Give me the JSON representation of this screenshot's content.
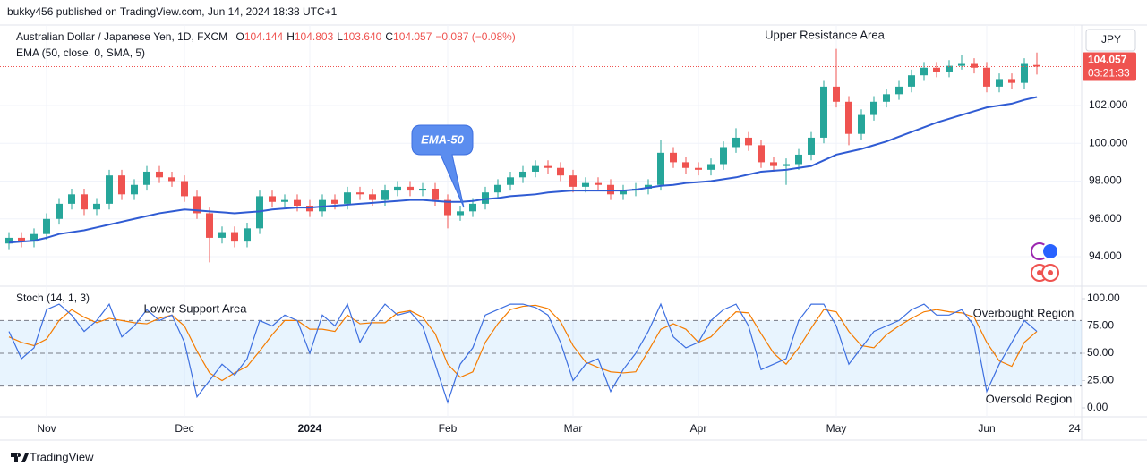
{
  "header": {
    "publisher": "bukky456 published on TradingView.com, Jun 14, 2024 18:38 UTC+1",
    "symbol": "Australian Dollar / Japanese Yen, 1D, FXCM",
    "quote": [
      {
        "key": "O",
        "value": "104.144"
      },
      {
        "key": "H",
        "value": "104.803"
      },
      {
        "key": "L",
        "value": "103.640"
      },
      {
        "key": "C",
        "value": "104.057"
      }
    ],
    "change": "−0.087 (−0.08%)",
    "currency": "JPY"
  },
  "footer": {
    "brand": "TradingView"
  },
  "chart_data": [
    {
      "type": "candlestick",
      "up_color": "#26a69a",
      "down_color": "#ef5350",
      "open": [
        94.7,
        95.0,
        94.8,
        95.2,
        96.0,
        96.8,
        97.3,
        96.5,
        96.8,
        98.3,
        97.3,
        97.8,
        98.5,
        98.2,
        98.0,
        97.2,
        96.3,
        95.0,
        95.3,
        94.8,
        95.5,
        97.2,
        96.9,
        97.0,
        96.7,
        96.4,
        97.0,
        96.8,
        97.4,
        97.3,
        97.0,
        97.5,
        97.7,
        97.5,
        97.6,
        97.0,
        96.2,
        96.4,
        96.8,
        97.4,
        97.8,
        98.2,
        98.5,
        98.8,
        98.7,
        98.3,
        97.7,
        97.9,
        97.8,
        97.3,
        97.5,
        97.6,
        97.8,
        99.5,
        99.0,
        98.7,
        98.6,
        98.9,
        99.8,
        100.3,
        99.9,
        99.0,
        98.8,
        98.9,
        99.4,
        100.3,
        103.0,
        102.2,
        100.5,
        101.5,
        102.2,
        102.6,
        103.0,
        103.6,
        104.0,
        103.8,
        104.1,
        104.2,
        104.0,
        103.0,
        103.4,
        103.2,
        104.144
      ],
      "high": [
        95.3,
        95.3,
        95.5,
        96.3,
        97.1,
        97.6,
        97.6,
        97.1,
        98.6,
        98.6,
        98.1,
        98.8,
        98.8,
        98.5,
        98.3,
        97.5,
        96.6,
        95.6,
        95.6,
        95.8,
        97.5,
        97.5,
        97.3,
        97.3,
        97.0,
        97.3,
        97.3,
        97.7,
        97.7,
        97.6,
        97.8,
        98.0,
        98.0,
        97.9,
        97.9,
        97.3,
        96.7,
        97.1,
        97.7,
        98.1,
        98.5,
        98.8,
        99.1,
        99.1,
        99.0,
        98.6,
        98.2,
        98.2,
        98.1,
        97.8,
        97.9,
        98.1,
        100.2,
        99.8,
        99.3,
        99.0,
        99.2,
        100.1,
        100.8,
        100.6,
        100.2,
        99.3,
        99.2,
        99.7,
        100.6,
        103.3,
        105.0,
        102.5,
        101.8,
        102.5,
        102.9,
        103.3,
        103.9,
        104.3,
        104.3,
        104.4,
        104.7,
        104.5,
        104.3,
        103.7,
        103.7,
        104.5,
        104.803
      ],
      "low": [
        94.4,
        94.5,
        94.5,
        94.9,
        95.7,
        96.5,
        96.2,
        96.2,
        96.5,
        97.0,
        97.0,
        97.5,
        97.9,
        97.7,
        96.9,
        96.0,
        93.7,
        94.7,
        94.5,
        94.5,
        95.2,
        96.6,
        96.6,
        96.4,
        96.1,
        96.1,
        96.5,
        96.5,
        97.0,
        96.7,
        96.7,
        97.2,
        97.2,
        97.2,
        96.7,
        95.5,
        95.9,
        96.1,
        96.5,
        97.1,
        97.5,
        97.9,
        98.2,
        98.4,
        98.0,
        97.4,
        97.4,
        97.5,
        97.0,
        97.0,
        97.2,
        97.3,
        97.5,
        98.7,
        98.4,
        98.3,
        98.3,
        98.6,
        99.5,
        99.6,
        98.7,
        98.5,
        97.8,
        98.6,
        99.1,
        100.0,
        101.9,
        99.9,
        100.2,
        101.2,
        101.9,
        102.3,
        102.7,
        103.3,
        103.5,
        103.5,
        103.9,
        103.7,
        102.7,
        102.7,
        102.9,
        102.9,
        103.64
      ],
      "close": [
        95.0,
        94.8,
        95.2,
        96.0,
        96.8,
        97.3,
        96.5,
        96.8,
        98.3,
        97.3,
        97.8,
        98.5,
        98.2,
        98.0,
        97.2,
        96.3,
        95.0,
        95.3,
        94.8,
        95.5,
        97.2,
        96.9,
        97.0,
        96.7,
        96.4,
        97.0,
        96.8,
        97.4,
        97.3,
        97.0,
        97.5,
        97.7,
        97.5,
        97.6,
        97.0,
        96.2,
        96.4,
        96.8,
        97.4,
        97.8,
        98.2,
        98.5,
        98.8,
        98.7,
        98.3,
        97.7,
        97.9,
        97.8,
        97.3,
        97.5,
        97.6,
        97.8,
        99.5,
        99.0,
        98.7,
        98.6,
        98.9,
        99.8,
        100.3,
        99.9,
        99.0,
        98.8,
        98.9,
        99.4,
        100.3,
        103.0,
        102.2,
        100.5,
        101.5,
        102.2,
        102.6,
        103.0,
        103.6,
        104.0,
        103.8,
        104.1,
        104.2,
        104.0,
        103.0,
        103.4,
        103.2,
        104.2,
        104.057
      ],
      "ema": {
        "name": "EMA (50, close, 0, SMA, 5)",
        "color": "#2f5bd3",
        "values": [
          94.75,
          94.8,
          94.85,
          95.0,
          95.2,
          95.3,
          95.4,
          95.55,
          95.7,
          95.85,
          96.0,
          96.15,
          96.3,
          96.4,
          96.5,
          96.45,
          96.4,
          96.35,
          96.3,
          96.35,
          96.4,
          96.5,
          96.55,
          96.6,
          96.6,
          96.65,
          96.7,
          96.75,
          96.8,
          96.85,
          96.9,
          96.95,
          97.0,
          97.0,
          96.95,
          96.9,
          96.9,
          96.95,
          97.05,
          97.1,
          97.2,
          97.25,
          97.3,
          97.4,
          97.45,
          97.5,
          97.5,
          97.5,
          97.5,
          97.5,
          97.55,
          97.65,
          97.75,
          97.8,
          97.9,
          97.95,
          98.0,
          98.1,
          98.2,
          98.35,
          98.5,
          98.55,
          98.6,
          98.7,
          98.8,
          99.1,
          99.4,
          99.55,
          99.7,
          99.9,
          100.1,
          100.35,
          100.6,
          100.85,
          101.1,
          101.3,
          101.5,
          101.7,
          101.9,
          102.0,
          102.1,
          102.3,
          102.45
        ]
      },
      "ylim": [
        92.44,
        106.26
      ],
      "yticks": [
        {
          "value": 94,
          "label": "94.000"
        },
        {
          "value": 96,
          "label": "96.000"
        },
        {
          "value": 98,
          "label": "98.000"
        },
        {
          "value": 100,
          "label": "100.000"
        },
        {
          "value": 102,
          "label": "102.000"
        }
      ],
      "grid": true,
      "price_tag": "104.057",
      "countdown": "03:21:33",
      "annotations": [
        "Upper Resistance Area",
        "EMA-50"
      ]
    },
    {
      "type": "line",
      "title": "Stoch (14, 1, 3)",
      "categories": [
        null,
        null,
        null,
        "Nov",
        null,
        null,
        null,
        null,
        null,
        null,
        null,
        null,
        null,
        null,
        "Dec",
        null,
        null,
        null,
        null,
        null,
        null,
        null,
        null,
        null,
        "2024",
        null,
        null,
        null,
        null,
        null,
        null,
        null,
        null,
        null,
        null,
        "Feb",
        null,
        null,
        null,
        null,
        null,
        null,
        null,
        null,
        null,
        "Mar",
        null,
        null,
        null,
        null,
        null,
        null,
        null,
        null,
        null,
        "Apr",
        null,
        null,
        null,
        null,
        null,
        null,
        null,
        null,
        null,
        null,
        "May",
        null,
        null,
        null,
        null,
        null,
        null,
        null,
        null,
        null,
        null,
        null,
        "Jun",
        null,
        null,
        null,
        null,
        null,
        null,
        "24"
      ],
      "series": [
        {
          "color": "#f57c00",
          "values": [
            65,
            60,
            57,
            63,
            80,
            90,
            83,
            78,
            82,
            80,
            78,
            77,
            82,
            85,
            75,
            52,
            32,
            25,
            32,
            38,
            52,
            67,
            80,
            80,
            72,
            72,
            70,
            85,
            77,
            78,
            78,
            87,
            89,
            83,
            68,
            40,
            28,
            33,
            60,
            77,
            90,
            93,
            94,
            91,
            79,
            57,
            42,
            37,
            33,
            32,
            33,
            52,
            72,
            77,
            72,
            60,
            65,
            77,
            88,
            87,
            68,
            50,
            40,
            55,
            73,
            90,
            88,
            70,
            57,
            55,
            67,
            75,
            82,
            88,
            90,
            88,
            87,
            83,
            60,
            43,
            38,
            60,
            70,
            null,
            null,
            null
          ]
        },
        {
          "color": "#3d6fe0",
          "values": [
            70,
            45,
            55,
            90,
            95,
            85,
            70,
            80,
            95,
            65,
            75,
            90,
            80,
            85,
            60,
            10,
            25,
            40,
            30,
            45,
            80,
            75,
            85,
            80,
            50,
            85,
            75,
            95,
            60,
            80,
            95,
            85,
            88,
            75,
            40,
            5,
            40,
            55,
            85,
            90,
            95,
            95,
            92,
            85,
            60,
            25,
            40,
            45,
            15,
            35,
            50,
            70,
            95,
            65,
            55,
            60,
            80,
            90,
            95,
            75,
            35,
            40,
            45,
            80,
            95,
            95,
            75,
            40,
            55,
            70,
            75,
            80,
            90,
            95,
            85,
            85,
            90,
            75,
            15,
            40,
            60,
            80,
            70,
            null,
            null,
            null
          ]
        }
      ],
      "ylim": [
        -8.2,
        109.84
      ],
      "yticks": [
        {
          "value": 100,
          "label": "100.00"
        },
        {
          "value": 75,
          "label": "75.00"
        },
        {
          "value": 50,
          "label": "50.00"
        },
        {
          "value": 25,
          "label": "25.00"
        },
        {
          "value": 0,
          "label": "0.00"
        }
      ],
      "band": [
        20,
        80
      ],
      "midline": 50,
      "band_color": "#2196f3",
      "annotations": [
        "Lower Support Area",
        "Overbought Region",
        "Oversold Region"
      ]
    }
  ]
}
